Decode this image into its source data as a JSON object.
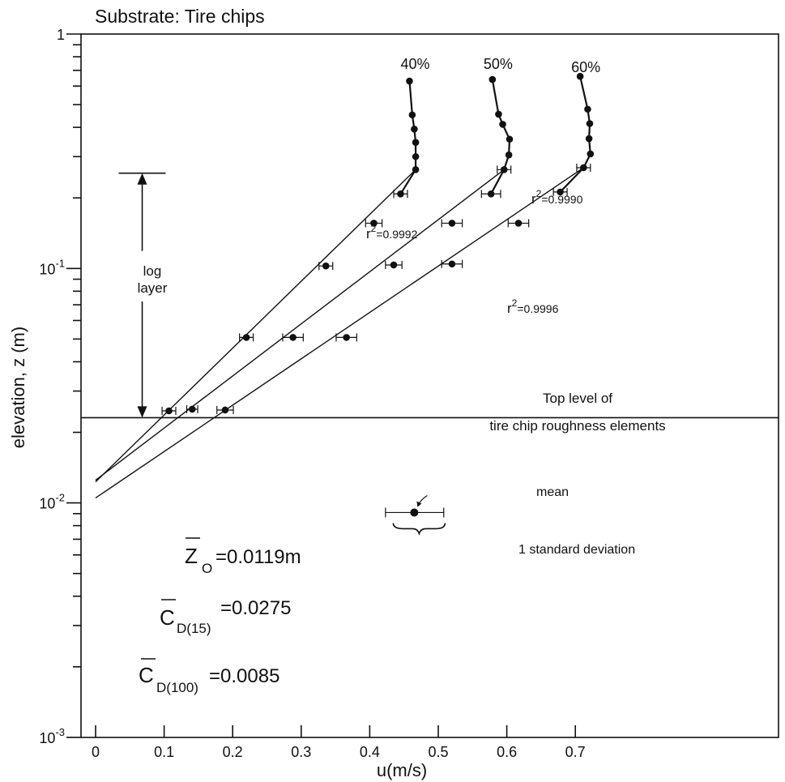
{
  "chart_data": {
    "type": "scatter",
    "title": "Substrate: Tire chips",
    "xlabel": "u(m/s)",
    "ylabel": "elevation, z (m)",
    "xlim": [
      0,
      0.72
    ],
    "ylim": [
      0.001,
      1
    ],
    "y_scale": "log",
    "x_ticks": [
      "0",
      "0.1",
      "0.2",
      "0.3",
      "0.4",
      "0.5",
      "0.6",
      "0.7"
    ],
    "y_ticks": [
      {
        "base": "10",
        "exp": "-3",
        "value": 0.001
      },
      {
        "base": "10",
        "exp": "-2",
        "value": 0.01
      },
      {
        "base": "10",
        "exp": "-1",
        "value": 0.1
      },
      {
        "base": "1",
        "exp": "",
        "value": 1
      }
    ],
    "grid": false,
    "series": [
      {
        "name": "40%",
        "points": [
          {
            "u": 0.107,
            "z": 0.0247,
            "err": 0.01
          },
          {
            "u": 0.22,
            "z": 0.0508,
            "err": 0.01
          },
          {
            "u": 0.336,
            "z": 0.1025,
            "err": 0.01
          },
          {
            "u": 0.406,
            "z": 0.156,
            "err": 0.012
          },
          {
            "u": 0.445,
            "z": 0.208,
            "err": 0.01
          },
          {
            "u": 0.467,
            "z": 0.264
          },
          {
            "u": 0.467,
            "z": 0.3
          },
          {
            "u": 0.467,
            "z": 0.345
          },
          {
            "u": 0.465,
            "z": 0.393
          },
          {
            "u": 0.462,
            "z": 0.452
          },
          {
            "u": 0.458,
            "z": 0.63
          }
        ],
        "fit_r2": "r^2=0.9992"
      },
      {
        "name": "50%",
        "points": [
          {
            "u": 0.141,
            "z": 0.0251,
            "err": 0.008
          },
          {
            "u": 0.288,
            "z": 0.0508,
            "err": 0.015
          },
          {
            "u": 0.435,
            "z": 0.1035,
            "err": 0.012
          },
          {
            "u": 0.52,
            "z": 0.156,
            "err": 0.015
          },
          {
            "u": 0.577,
            "z": 0.208,
            "err": 0.014
          },
          {
            "u": 0.596,
            "z": 0.264,
            "err": 0.01
          },
          {
            "u": 0.603,
            "z": 0.305
          },
          {
            "u": 0.604,
            "z": 0.356
          },
          {
            "u": 0.594,
            "z": 0.412
          },
          {
            "u": 0.588,
            "z": 0.455
          },
          {
            "u": 0.579,
            "z": 0.64
          }
        ],
        "fit_r2": "r^2=0.9990"
      },
      {
        "name": "60%",
        "points": [
          {
            "u": 0.189,
            "z": 0.0249,
            "err": 0.012
          },
          {
            "u": 0.366,
            "z": 0.0508,
            "err": 0.015
          },
          {
            "u": 0.52,
            "z": 0.1045,
            "err": 0.015
          },
          {
            "u": 0.617,
            "z": 0.156,
            "err": 0.015
          },
          {
            "u": 0.678,
            "z": 0.212,
            "err": 0.01
          },
          {
            "u": 0.712,
            "z": 0.269,
            "err": 0.01
          },
          {
            "u": 0.722,
            "z": 0.308
          },
          {
            "u": 0.72,
            "z": 0.358
          },
          {
            "u": 0.721,
            "z": 0.415
          },
          {
            "u": 0.718,
            "z": 0.478
          },
          {
            "u": 0.707,
            "z": 0.66
          }
        ],
        "fit_r2": "r^2=0.9996"
      }
    ],
    "fit_lines": [
      {
        "series": "40%",
        "from": {
          "u": 0,
          "z": 0.0123
        },
        "to": {
          "u": 0.467,
          "z": 0.264
        }
      },
      {
        "series": "50%",
        "from": {
          "u": 0,
          "z": 0.0125
        },
        "to": {
          "u": 0.596,
          "z": 0.264
        }
      },
      {
        "series": "60%",
        "from": {
          "u": 0,
          "z": 0.0105
        },
        "to": {
          "u": 0.712,
          "z": 0.269
        }
      }
    ],
    "roughness_level": {
      "z": 0.0231,
      "label_line1": "Top level of",
      "label_line2": "tire chip roughness elements"
    },
    "log_layer": {
      "z_top": 0.255,
      "z_bottom": 0.0231,
      "u": 0.068,
      "label_line1": "log",
      "label_line2": "layer"
    },
    "legend_example": {
      "u": 0.465,
      "z": 0.0091,
      "err_left": 0.423,
      "err_right": 0.508,
      "mean_label": "mean",
      "sd_label": "1 standard deviation"
    },
    "annotations": {
      "z0": {
        "sym": "Z",
        "sub": "O",
        "val": "=0.0119m"
      },
      "cd15": {
        "sym": "C",
        "sub": "D(15)",
        "val": "=0.0275"
      },
      "cd100": {
        "sym": "C",
        "sub": "D(100)",
        "val": "=0.0085"
      }
    }
  }
}
